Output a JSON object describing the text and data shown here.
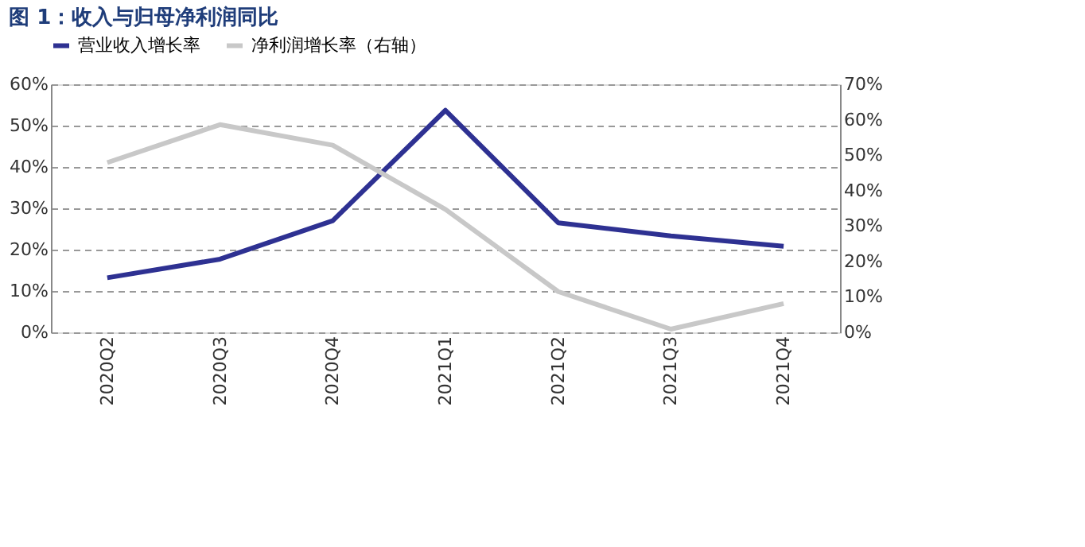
{
  "chart_data": {
    "type": "line",
    "title": "图 1：收入与归母净利润同比",
    "categories": [
      "2020Q2",
      "2020Q3",
      "2020Q4",
      "2021Q1",
      "2021Q2",
      "2021Q3",
      "2021Q4"
    ],
    "series": [
      {
        "name": "营业收入增长率",
        "color": "#2e3192",
        "values": [
          13.2,
          17.7,
          27.0,
          53.7,
          26.5,
          23.3,
          20.8
        ]
      },
      {
        "name": "净利润增长率（右轴）",
        "color": "#c8c8c8",
        "axis": "y2",
        "values": [
          47.9,
          58.6,
          52.8,
          34.7,
          11.5,
          0.9,
          8.1
        ]
      }
    ],
    "ylim": [
      0,
      60
    ],
    "yticks": [
      {
        "value": 0,
        "label": "0%"
      },
      {
        "value": 10,
        "label": "10%"
      },
      {
        "value": 20,
        "label": "20%"
      },
      {
        "value": 30,
        "label": "30%"
      },
      {
        "value": 40,
        "label": "40%"
      },
      {
        "value": 50,
        "label": "50%"
      },
      {
        "value": 60,
        "label": "60%"
      }
    ],
    "y2lim": [
      0,
      70
    ],
    "y2ticks": [
      {
        "value": 0,
        "label": "0%"
      },
      {
        "value": 10,
        "label": "10%"
      },
      {
        "value": 20,
        "label": "20%"
      },
      {
        "value": 30,
        "label": "30%"
      },
      {
        "value": 40,
        "label": "40%"
      },
      {
        "value": 50,
        "label": "50%"
      },
      {
        "value": 60,
        "label": "60%"
      },
      {
        "value": 70,
        "label": "70%"
      }
    ],
    "grid": "y",
    "legend": "top",
    "marker": "none",
    "line_style": "solid"
  }
}
